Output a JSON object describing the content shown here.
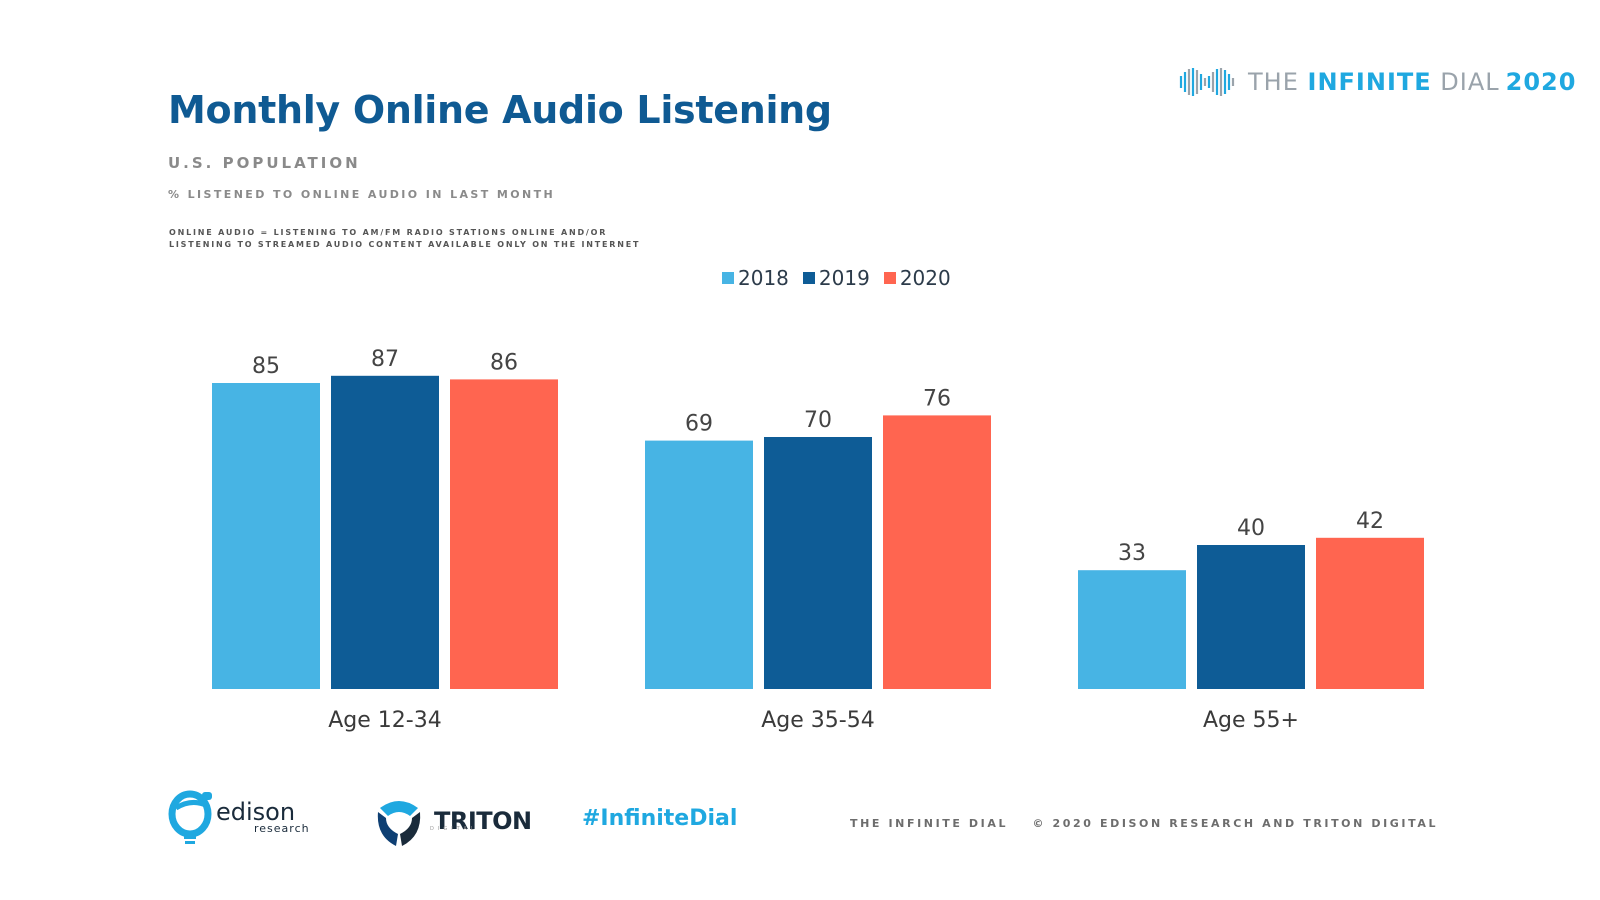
{
  "header": {
    "title": "Monthly Online Audio Listening",
    "subtitle": "U.S. POPULATION",
    "measure": "% LISTENED TO ONLINE AUDIO IN LAST MONTH",
    "definition_line1": "ONLINE AUDIO = LISTENING TO AM/FM RADIO STATIONS ONLINE AND/OR",
    "definition_line2": "LISTENING TO STREAMED AUDIO CONTENT AVAILABLE ONLY ON THE INTERNET"
  },
  "brand": {
    "the": "THE",
    "infinite": "INFINITE",
    "dial": "DIAL",
    "year": "2020",
    "icon": "infinite-dial-logo-icon"
  },
  "chart_data": {
    "type": "bar",
    "categories": [
      "Age 12-34",
      "Age 35-54",
      "Age 55+"
    ],
    "series": [
      {
        "name": "2018",
        "color": "#47b4e4",
        "values": [
          85,
          69,
          33
        ]
      },
      {
        "name": "2019",
        "color": "#0e5c96",
        "values": [
          87,
          70,
          40
        ]
      },
      {
        "name": "2020",
        "color": "#ff6550",
        "values": [
          86,
          76,
          42
        ]
      }
    ],
    "title": "Monthly Online Audio Listening",
    "xlabel": "",
    "ylabel": "",
    "ylim": [
      0,
      100
    ],
    "grid": false,
    "legend": "top-center",
    "data_labels": true
  },
  "footer": {
    "edison_name": "edison",
    "edison_sub": "research",
    "triton_name": "TRITON",
    "triton_sub": "DIGITAL",
    "hashtag": "#InfiniteDial",
    "note_left": "THE INFINITE DIAL",
    "note_right": "© 2020 EDISON RESEARCH AND TRITON DIGITAL"
  }
}
